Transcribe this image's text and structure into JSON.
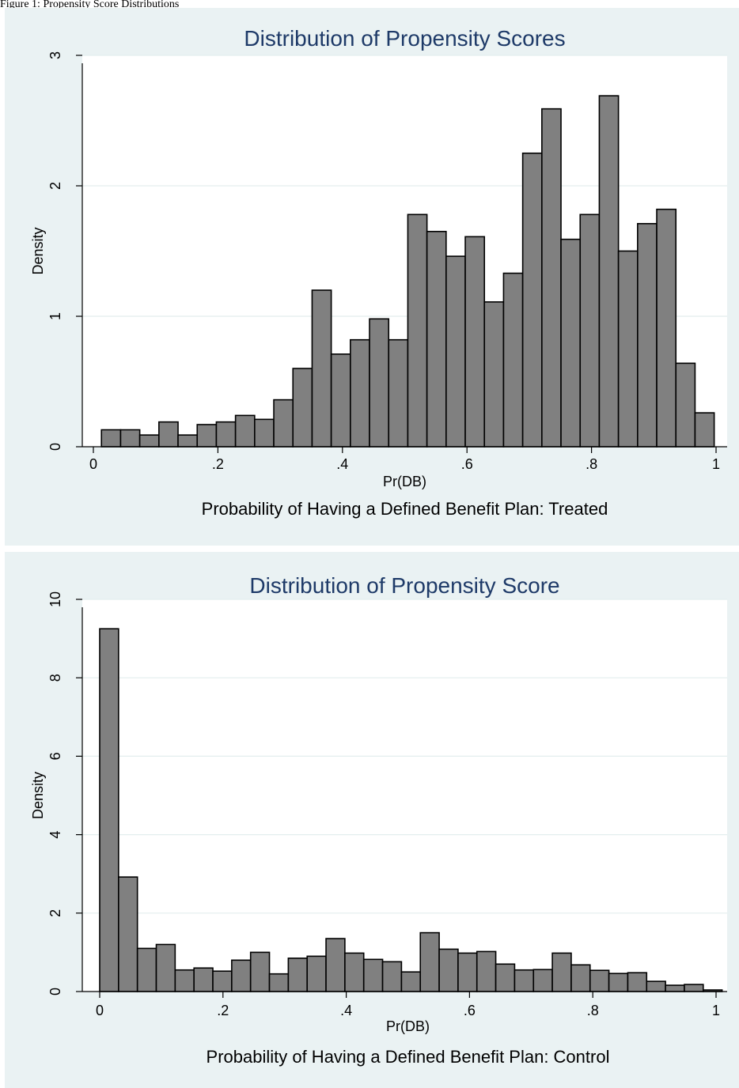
{
  "caption": "Figure 1: Propensity Score Distributions",
  "chart_data": [
    {
      "type": "bar",
      "title": "Distribution of Propensity Scores",
      "xlabel": "Pr(DB)",
      "ylabel": "Density",
      "note": "Probability of Having a Defined Benefit Plan: Treated",
      "xlim": [
        0,
        1
      ],
      "ylim": [
        0,
        3
      ],
      "xticks": [
        0,
        0.2,
        0.4,
        0.6,
        0.8,
        1
      ],
      "xtick_labels": [
        "0",
        ".2",
        ".4",
        ".6",
        ".8",
        "1"
      ],
      "yticks": [
        0,
        1,
        2,
        3
      ],
      "ytick_labels": [
        "0",
        "1",
        "2",
        "3"
      ],
      "grid": true,
      "bin_start": 0.013,
      "bin_width": 0.03075,
      "values": [
        0.13,
        0.13,
        0.09,
        0.19,
        0.09,
        0.17,
        0.19,
        0.24,
        0.21,
        0.36,
        0.6,
        1.2,
        0.71,
        0.82,
        0.98,
        0.82,
        1.78,
        1.65,
        1.46,
        1.61,
        1.11,
        1.33,
        2.25,
        2.59,
        1.59,
        1.78,
        2.69,
        1.5,
        1.71,
        1.82,
        0.64,
        0.26
      ],
      "bar_color": "#808080"
    },
    {
      "type": "bar",
      "title": "Distribution of Propensity Score",
      "xlabel": "Pr(DB)",
      "ylabel": "Density",
      "note": "Probability of Having a Defined Benefit Plan: Control",
      "xlim": [
        0,
        1
      ],
      "ylim": [
        0,
        10
      ],
      "xticks": [
        0,
        0.2,
        0.4,
        0.6,
        0.8,
        1
      ],
      "xtick_labels": [
        "0",
        ".2",
        ".4",
        ".6",
        ".8",
        "1"
      ],
      "yticks": [
        0,
        2,
        4,
        6,
        8,
        10
      ],
      "ytick_labels": [
        "0",
        "2",
        "4",
        "6",
        "8",
        "10"
      ],
      "grid": true,
      "bin_start": 0.0,
      "bin_width": 0.0306,
      "values": [
        9.25,
        2.92,
        1.1,
        1.2,
        0.55,
        0.6,
        0.52,
        0.8,
        1.0,
        0.45,
        0.85,
        0.9,
        1.35,
        0.98,
        0.82,
        0.76,
        0.5,
        1.5,
        1.08,
        0.98,
        1.02,
        0.7,
        0.55,
        0.56,
        0.98,
        0.68,
        0.54,
        0.46,
        0.48,
        0.26,
        0.16,
        0.18,
        0.04
      ],
      "bar_color": "#808080"
    }
  ]
}
